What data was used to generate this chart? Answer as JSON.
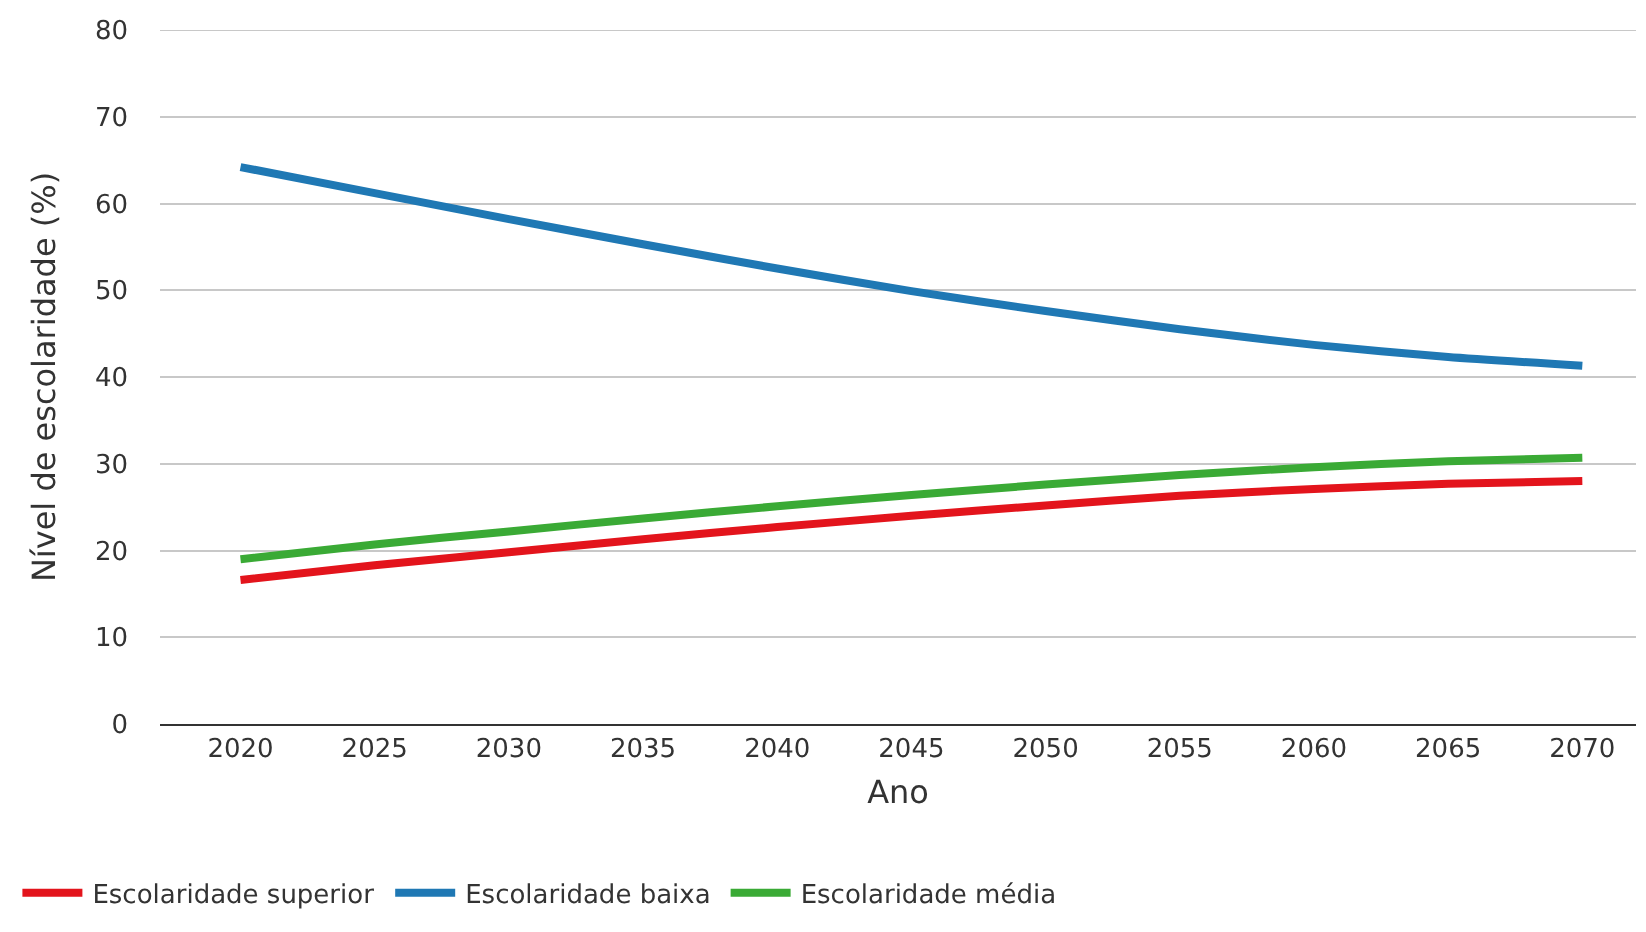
{
  "chart_data": {
    "type": "line",
    "xlabel": "Ano",
    "ylabel": "Nível de escolaridade (%)",
    "categories": [
      "2020",
      "2025",
      "2030",
      "2035",
      "2040",
      "2045",
      "2050",
      "2055",
      "2060",
      "2065",
      "2070"
    ],
    "series": [
      {
        "name": "Escolaridade superior",
        "color": "#e3141c",
        "values": [
          16.6,
          18.3,
          19.8,
          21.3,
          22.7,
          24.0,
          25.2,
          26.3,
          27.1,
          27.7,
          28.0
        ]
      },
      {
        "name": "Escolaridade baixa",
        "color": "#1f78b4",
        "values": [
          64.2,
          61.2,
          58.2,
          55.3,
          52.5,
          49.9,
          47.6,
          45.5,
          43.7,
          42.3,
          41.3
        ]
      },
      {
        "name": "Escolaridade média",
        "color": "#3aaa35",
        "values": [
          19.0,
          20.7,
          22.2,
          23.7,
          25.1,
          26.4,
          27.6,
          28.7,
          29.6,
          30.3,
          30.7
        ]
      }
    ],
    "ylim": [
      0,
      80
    ],
    "yticks": [
      0,
      10,
      20,
      30,
      40,
      50,
      60,
      70,
      80
    ],
    "grid": "y",
    "legend": "bottom",
    "marker": "none",
    "line_style": "solid"
  }
}
